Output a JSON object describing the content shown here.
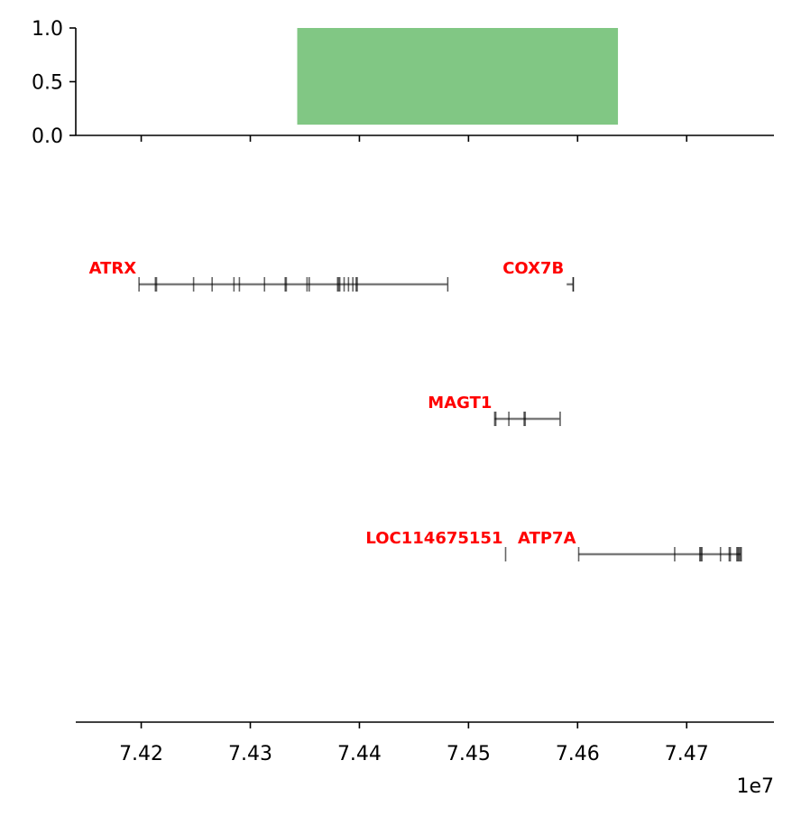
{
  "chart_data": [
    {
      "type": "bar",
      "panel": "top",
      "ylim": [
        0,
        1.0
      ],
      "yticks": [
        0.0,
        0.5,
        1.0
      ],
      "ytick_labels": [
        "0.0",
        "0.5",
        "1.0"
      ],
      "xlim": [
        74140000,
        74780000
      ],
      "bars": [
        {
          "start": 74343000,
          "end": 74637000,
          "bottom": 0.1,
          "top": 1.0,
          "color": "#81c784"
        }
      ],
      "grid": false
    },
    {
      "type": "gene_track",
      "panel": "bottom",
      "xlim": [
        74140000,
        74780000
      ],
      "xticks": [
        74200000,
        74300000,
        74400000,
        74500000,
        74600000,
        74700000
      ],
      "xtick_labels": [
        "7.42",
        "7.43",
        "7.44",
        "7.45",
        "7.46",
        "7.47"
      ],
      "x_offset_label": "1e7",
      "label_color": "#ff0000",
      "line_color": "#7a7a7a",
      "genes": [
        {
          "name": "ATRX",
          "row": 0,
          "start": 74198000,
          "end": 74481000,
          "exons": [
            74198000,
            74213000,
            74214000,
            74248000,
            74265000,
            74285000,
            74290000,
            74313000,
            74332000,
            74333000,
            74352000,
            74354000,
            74380000,
            74381000,
            74382000,
            74386000,
            74390000,
            74394000,
            74397000,
            74398000
          ]
        },
        {
          "name": "COX7B",
          "row": 0,
          "start": 74590000,
          "end": 74596000,
          "exons": [
            74596000
          ]
        },
        {
          "name": "MAGT1",
          "row": 1,
          "start": 74524000,
          "end": 74584000,
          "exons": [
            74524000,
            74525000,
            74537000,
            74551000,
            74552000
          ]
        },
        {
          "name": "LOC114675151",
          "row": 2,
          "start": 74534000,
          "end": 74534000,
          "exons": [
            74534000
          ]
        },
        {
          "name": "ATP7A",
          "row": 2,
          "start": 74601000,
          "end": 74750000,
          "exons": [
            74601000,
            74689000,
            74712000,
            74713000,
            74714000,
            74731000,
            74739000,
            74740000,
            74746000,
            74747000,
            74748000,
            74749000
          ]
        }
      ]
    }
  ]
}
